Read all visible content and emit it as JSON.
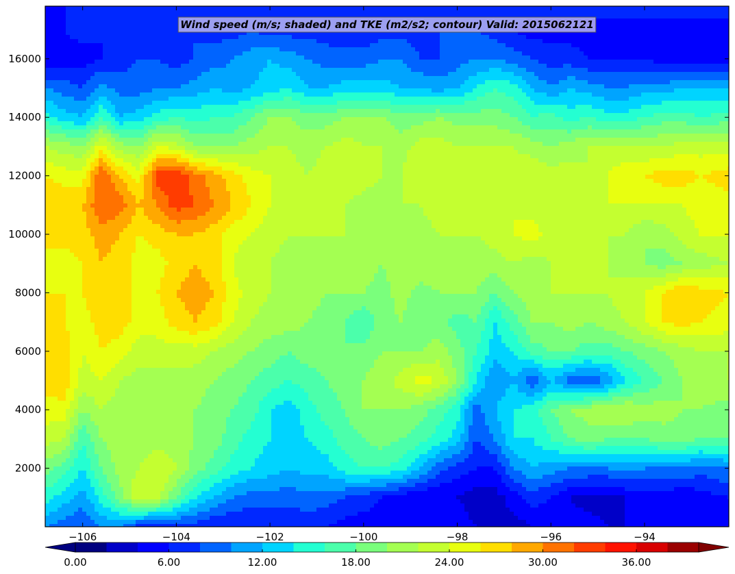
{
  "chart_data": {
    "type": "heatmap",
    "title": "Wind speed (m/s; shaded) and TKE (m2/s2; contour) Valid: 2015062121",
    "xlabel": "",
    "ylabel": "",
    "xlim": [
      -106.8,
      -92.2
    ],
    "ylim": [
      0,
      17800
    ],
    "x_ticks": [
      -106,
      -104,
      -102,
      -100,
      -98,
      -96,
      -94
    ],
    "x_tick_labels": [
      "−106",
      "−104",
      "−102",
      "−100",
      "−98",
      "−96",
      "−94"
    ],
    "y_ticks": [
      2000,
      4000,
      6000,
      8000,
      10000,
      12000,
      14000,
      16000
    ],
    "y_tick_labels": [
      "2000",
      "4000",
      "6000",
      "8000",
      "10000",
      "12000",
      "14000",
      "16000"
    ],
    "colorbar": {
      "levels": [
        0,
        2,
        4,
        6,
        8,
        10,
        12,
        14,
        16,
        18,
        20,
        22,
        24,
        26,
        28,
        30,
        32,
        34,
        36,
        38,
        40
      ],
      "colors": [
        "#00007f",
        "#0000c8",
        "#0000ff",
        "#0028ff",
        "#0064ff",
        "#00a4ff",
        "#00d4ff",
        "#24ffd2",
        "#4bffab",
        "#7aff7c",
        "#a4ff52",
        "#c4ff30",
        "#e8ff10",
        "#ffde00",
        "#ffa800",
        "#ff7200",
        "#ff3c00",
        "#ff1200",
        "#d80000",
        "#9a0000"
      ],
      "extend_low_color": "#00007f",
      "extend_high_color": "#800000",
      "tick_values": [
        0,
        6,
        12,
        18,
        24,
        30,
        36
      ],
      "tick_labels": [
        "0.00",
        "6.00",
        "12.00",
        "18.00",
        "24.00",
        "30.00",
        "36.00"
      ]
    },
    "wind_speed_field": {
      "units": "m/s",
      "x": [
        -106.8,
        -106.4,
        -106.0,
        -105.6,
        -105.2,
        -104.8,
        -104.4,
        -104.0,
        -103.6,
        -103.2,
        -102.8,
        -102.4,
        -102.0,
        -101.6,
        -101.2,
        -100.8,
        -100.4,
        -100.0,
        -99.6,
        -99.2,
        -98.8,
        -98.4,
        -98.0,
        -97.6,
        -97.2,
        -96.8,
        -96.4,
        -96.0,
        -95.6,
        -95.2,
        -94.8,
        -94.4,
        -94.0,
        -93.6,
        -93.2,
        -92.8,
        -92.2
      ],
      "y": [
        0,
        1000,
        2000,
        3000,
        4000,
        5000,
        6000,
        7000,
        8000,
        9000,
        10000,
        11000,
        12000,
        13000,
        14000,
        15000,
        16000,
        17000,
        17800
      ],
      "z": [
        [
          10,
          9,
          8,
          10,
          10,
          7,
          6,
          7,
          7,
          6,
          6,
          6,
          6,
          6,
          7,
          6,
          5,
          5,
          5,
          5,
          4,
          4,
          5,
          4,
          4,
          3,
          4,
          4,
          5,
          5,
          4,
          4,
          5,
          4,
          4,
          5,
          5
        ],
        [
          15,
          13,
          11,
          15,
          19,
          24,
          23,
          18,
          14,
          12,
          10,
          9,
          9,
          9,
          9,
          9,
          8,
          7,
          6,
          5,
          4,
          4,
          4,
          3,
          3,
          5,
          7,
          6,
          4,
          3,
          3,
          4,
          5,
          5,
          4,
          5,
          6
        ],
        [
          19,
          17,
          14,
          18,
          21,
          22,
          24,
          22,
          19,
          17,
          15,
          14,
          13,
          12,
          13,
          13,
          15,
          16,
          16,
          15,
          12,
          9,
          7,
          6,
          6,
          10,
          12,
          11,
          10,
          10,
          10,
          11,
          10,
          10,
          10,
          9,
          10
        ],
        [
          23,
          22,
          16,
          20,
          21,
          20,
          21,
          21,
          20,
          19,
          17,
          15,
          14,
          13,
          14,
          15,
          17,
          18,
          19,
          18,
          17,
          15,
          13,
          8,
          10,
          14,
          14,
          16,
          18,
          19,
          18,
          18,
          18,
          19,
          19,
          18,
          18
        ],
        [
          25,
          25,
          20,
          22,
          21,
          20,
          20,
          20,
          20,
          19,
          18,
          17,
          14,
          13,
          15,
          17,
          18,
          20,
          20,
          20,
          19,
          17,
          15,
          9,
          12,
          14,
          15,
          18,
          20,
          21,
          22,
          22,
          21,
          21,
          20,
          20,
          19
        ],
        [
          27,
          28,
          23,
          24,
          22,
          21,
          21,
          21,
          21,
          20,
          19,
          18,
          17,
          16,
          17,
          18,
          19,
          20,
          21,
          23,
          25,
          24,
          20,
          14,
          10,
          12,
          8,
          12,
          9,
          8,
          10,
          14,
          16,
          18,
          20,
          21,
          22
        ],
        [
          26,
          27,
          24,
          26,
          25,
          23,
          23,
          23,
          23,
          22,
          21,
          20,
          19,
          18,
          19,
          19,
          18,
          19,
          20,
          20,
          20,
          21,
          19,
          16,
          13,
          14,
          17,
          18,
          18,
          17,
          17,
          18,
          19,
          20,
          21,
          22,
          22
        ],
        [
          26,
          26,
          25,
          27,
          27,
          25,
          25,
          27,
          28,
          27,
          24,
          22,
          21,
          21,
          20,
          19,
          18,
          16,
          19,
          20,
          18,
          19,
          17,
          18,
          14,
          17,
          20,
          20,
          21,
          20,
          21,
          22,
          24,
          26,
          27,
          26,
          25
        ],
        [
          26,
          26,
          26,
          28,
          27,
          25,
          26,
          28,
          29,
          28,
          25,
          23,
          22,
          22,
          21,
          20,
          20,
          20,
          19,
          21,
          19,
          20,
          20,
          20,
          18,
          20,
          21,
          22,
          22,
          22,
          22,
          23,
          24,
          26,
          28,
          27,
          26
        ],
        [
          25,
          25,
          26,
          28,
          27,
          25,
          25,
          27,
          28,
          27,
          24,
          22,
          22,
          21,
          21,
          20,
          21,
          21,
          20,
          22,
          22,
          21,
          21,
          21,
          21,
          22,
          21,
          22,
          22,
          23,
          22,
          21,
          20,
          19,
          20,
          21,
          22
        ],
        [
          27,
          27,
          27,
          29,
          28,
          26,
          27,
          28,
          28,
          27,
          25,
          24,
          23,
          22,
          22,
          22,
          22,
          22,
          22,
          22,
          21,
          22,
          22,
          22,
          23,
          24,
          25,
          23,
          23,
          22,
          22,
          22,
          20,
          21,
          23,
          24,
          24
        ],
        [
          28,
          28,
          28,
          32,
          31,
          28,
          30,
          33,
          32,
          30,
          28,
          26,
          24,
          23,
          22,
          22,
          22,
          21,
          21,
          22,
          22,
          23,
          23,
          23,
          24,
          24,
          23,
          22,
          22,
          23,
          24,
          24,
          24,
          24,
          24,
          25,
          25
        ],
        [
          26,
          25,
          25,
          32,
          28,
          25,
          33,
          34,
          31,
          29,
          27,
          25,
          24,
          23,
          22,
          23,
          24,
          23,
          22,
          22,
          24,
          23,
          24,
          23,
          24,
          23,
          24,
          23,
          23,
          22,
          24,
          26,
          26,
          27,
          27,
          26,
          27
        ],
        [
          22,
          21,
          20,
          25,
          21,
          20,
          24,
          23,
          20,
          20,
          20,
          21,
          22,
          22,
          21,
          22,
          23,
          22,
          22,
          21,
          23,
          23,
          22,
          22,
          22,
          22,
          21,
          20,
          21,
          22,
          22,
          22,
          22,
          22,
          23,
          23,
          23
        ],
        [
          15,
          13,
          12,
          16,
          12,
          13,
          15,
          16,
          15,
          16,
          16,
          18,
          20,
          20,
          19,
          19,
          20,
          20,
          20,
          19,
          19,
          20,
          19,
          19,
          19,
          18,
          16,
          17,
          15,
          16,
          15,
          15,
          16,
          17,
          17,
          16,
          17
        ],
        [
          10,
          9,
          8,
          11,
          9,
          9,
          10,
          10,
          11,
          12,
          11,
          12,
          13,
          14,
          12,
          12,
          13,
          13,
          13,
          12,
          12,
          11,
          12,
          14,
          16,
          15,
          12,
          10,
          12,
          11,
          10,
          10,
          11,
          11,
          12,
          12,
          12
        ],
        [
          4,
          5,
          5,
          6,
          7,
          8,
          8,
          7,
          8,
          9,
          10,
          11,
          12,
          11,
          10,
          9,
          9,
          9,
          10,
          10,
          8,
          8,
          9,
          10,
          10,
          9,
          8,
          7,
          7,
          6,
          6,
          6,
          6,
          5,
          5,
          5,
          5
        ],
        [
          5,
          6,
          7,
          6,
          6,
          7,
          8,
          8,
          8,
          7,
          7,
          8,
          7,
          7,
          7,
          7,
          6,
          6,
          7,
          7,
          7,
          8,
          8,
          8,
          7,
          6,
          5,
          5,
          5,
          5,
          5,
          5,
          5,
          5,
          5,
          5,
          5
        ],
        [
          6,
          6,
          7,
          7,
          7,
          7,
          7,
          7,
          7,
          7,
          7,
          7,
          7,
          7,
          7,
          7,
          7,
          7,
          7,
          7,
          7,
          7,
          7,
          7,
          7,
          7,
          7,
          7,
          7,
          7,
          7,
          7,
          7,
          7,
          7,
          7,
          7
        ]
      ]
    }
  }
}
